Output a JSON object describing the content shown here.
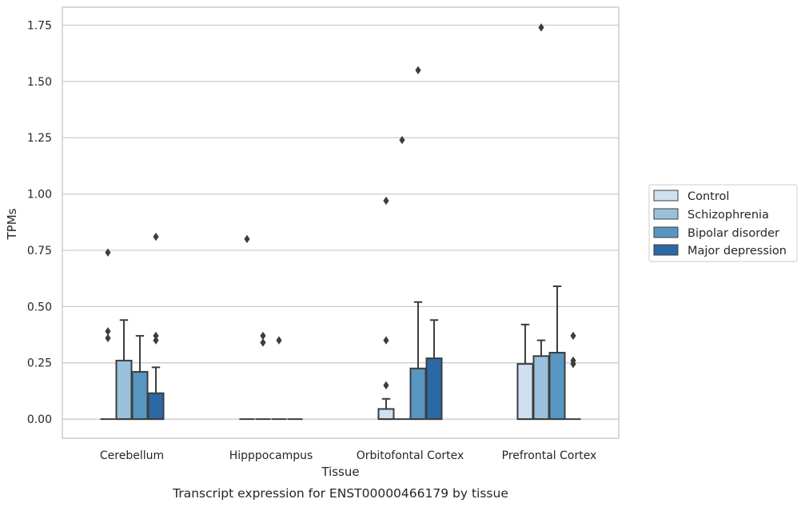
{
  "chart_data": {
    "type": "box",
    "caption": "Transcript expression for ENST00000466179 by tissue",
    "xlabel": "Tissue",
    "ylabel": "TPMs",
    "ylim": [
      -0.085,
      1.83
    ],
    "yticks": [
      "0.00",
      "0.25",
      "0.50",
      "0.75",
      "1.00",
      "1.25",
      "1.50",
      "1.75"
    ],
    "grid": "horizontal",
    "legend_position": "right",
    "categories": [
      "Cerebellum",
      "Hipppocampus",
      "Orbitofontal Cortex",
      "Prefrontal Cortex"
    ],
    "series": [
      {
        "name": "Control",
        "color": "#cfe1f0",
        "boxes": [
          {
            "q1": 0,
            "median": 0,
            "q3": 0,
            "whisker_low": 0,
            "whisker_high": 0,
            "outliers": []
          },
          {
            "q1": 0,
            "median": 0,
            "q3": 0,
            "whisker_low": 0,
            "whisker_high": 0,
            "outliers": []
          },
          {
            "q1": 0,
            "median": 0,
            "q3": 0.045,
            "whisker_low": 0,
            "whisker_high": 0.09,
            "outliers": [
              0.15,
              0.35,
              0.97
            ]
          },
          {
            "q1": 0,
            "median": 0,
            "q3": 0.245,
            "whisker_low": 0,
            "whisker_high": 0.42,
            "outliers": []
          }
        ]
      },
      {
        "name": "Schizophrenia",
        "color": "#9ac1db",
        "boxes": [
          {
            "q1": 0,
            "median": 0,
            "q3": 0.26,
            "whisker_low": 0,
            "whisker_high": 0.44,
            "outliers": []
          },
          {
            "q1": 0,
            "median": 0,
            "q3": 0,
            "whisker_low": 0,
            "whisker_high": 0,
            "outliers": []
          },
          {
            "q1": 0,
            "median": 0,
            "q3": 0,
            "whisker_low": 0,
            "whisker_high": 0,
            "outliers": [
              1.24
            ]
          },
          {
            "q1": 0,
            "median": 0,
            "q3": 0.28,
            "whisker_low": 0,
            "whisker_high": 0.35,
            "outliers": []
          }
        ]
      },
      {
        "name": "Bipolar disorder",
        "color": "#5896c2",
        "boxes": [
          {
            "q1": 0,
            "median": 0,
            "q3": 0.21,
            "whisker_low": 0,
            "whisker_high": 0.37,
            "outliers": []
          },
          {
            "q1": 0,
            "median": 0,
            "q3": 0,
            "whisker_low": 0,
            "whisker_high": 0,
            "outliers": []
          },
          {
            "q1": 0,
            "median": 0,
            "q3": 0.225,
            "whisker_low": 0,
            "whisker_high": 0.52,
            "outliers": [
              1.55
            ]
          },
          {
            "q1": 0,
            "median": 0,
            "q3": 0.295,
            "whisker_low": 0,
            "whisker_high": 0.59,
            "outliers": []
          }
        ]
      },
      {
        "name": "Major depression",
        "color": "#2b69a4",
        "boxes": [
          {
            "q1": 0,
            "median": 0,
            "q3": 0.115,
            "whisker_low": 0,
            "whisker_high": 0.23,
            "outliers": []
          },
          {
            "q1": 0,
            "median": 0,
            "q3": 0,
            "whisker_low": 0,
            "whisker_high": 0,
            "outliers": []
          },
          {
            "q1": 0,
            "median": 0,
            "q3": 0.27,
            "whisker_low": 0,
            "whisker_high": 0.44,
            "outliers": []
          },
          {
            "q1": 0,
            "median": 0,
            "q3": 0,
            "whisker_low": 0,
            "whisker_high": 0,
            "outliers": []
          }
        ]
      }
    ],
    "extra_outliers": [
      {
        "category": 0,
        "x_offset_series": 0,
        "values": [
          0.36,
          0.39,
          0.74
        ]
      },
      {
        "category": 0,
        "x_offset_series": 3,
        "values": [
          0.35,
          0.37,
          0.81
        ]
      },
      {
        "category": 1,
        "x_offset_series": 0,
        "values": [
          0.8
        ]
      },
      {
        "category": 1,
        "x_offset_series": 1,
        "values": [
          0.34,
          0.37
        ]
      },
      {
        "category": 1,
        "x_offset_series": 2,
        "values": [
          0.35
        ]
      },
      {
        "category": 3,
        "x_offset_series": 1,
        "values": [
          1.74
        ]
      },
      {
        "category": 3,
        "x_offset_series": 3,
        "values": [
          0.245,
          0.26,
          0.37
        ]
      }
    ],
    "style": {
      "edge_color": "#3d3d3d",
      "grid_color": "#cccccc",
      "frame_color": "#cccccc",
      "text_color": "#262626"
    }
  }
}
